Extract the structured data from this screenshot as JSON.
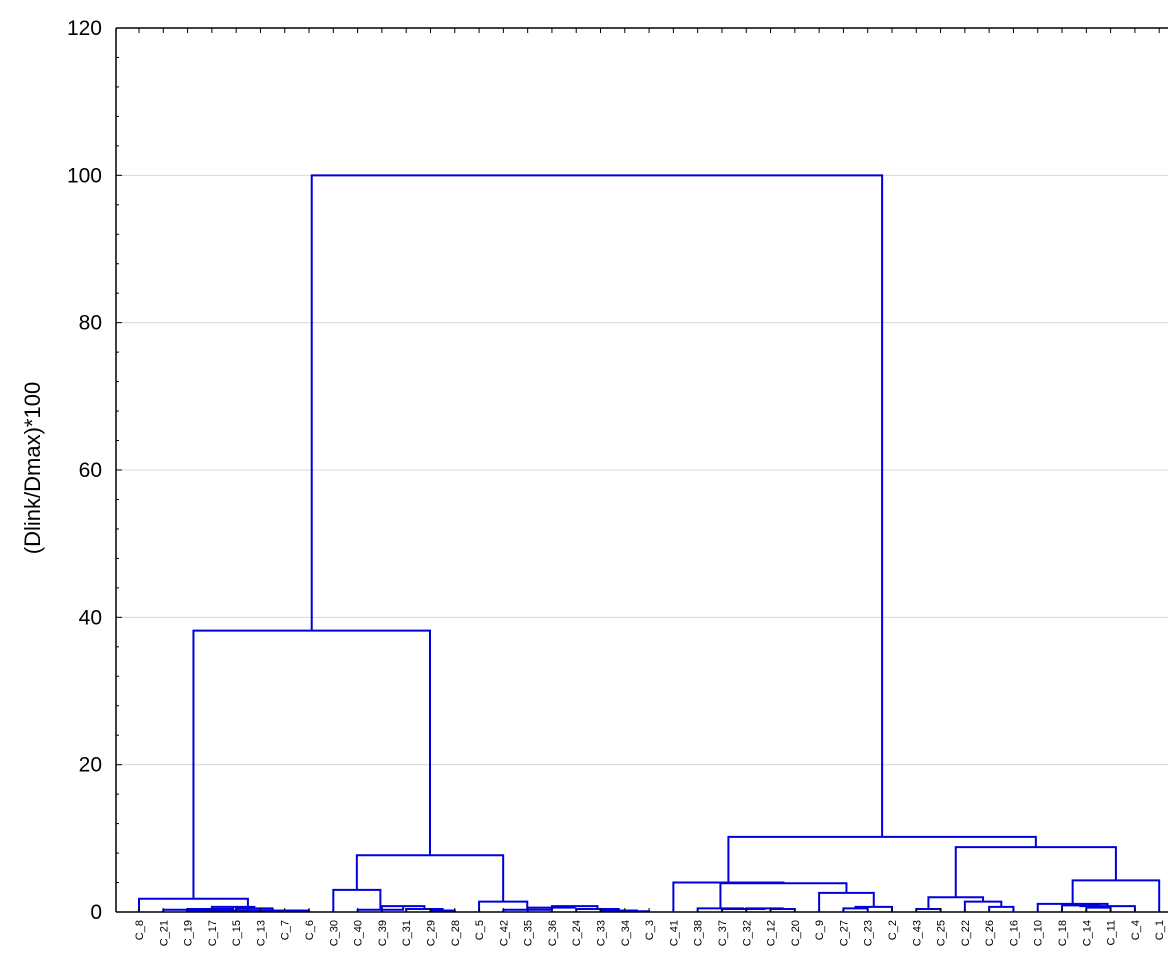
{
  "chart_data": {
    "type": "dendrogram",
    "xlabel": "",
    "ylabel": "(Dlink/Dmax)*100",
    "ylim": [
      0,
      120
    ],
    "yticks": [
      0,
      20,
      40,
      60,
      80,
      100,
      120
    ],
    "grid": true,
    "colors": {
      "links": "#0000dd",
      "grid": "#d8d8d8",
      "axis": "#000000"
    },
    "leaves": [
      "C_8",
      "C_21",
      "C_19",
      "C_17",
      "C_15",
      "C_13",
      "C_7",
      "C_6",
      "C_30",
      "C_40",
      "C_39",
      "C_31",
      "C_29",
      "C_28",
      "C_5",
      "C_42",
      "C_35",
      "C_36",
      "C_24",
      "C_33",
      "C_34",
      "C_3",
      "C_41",
      "C_38",
      "C_37",
      "C_32",
      "C_12",
      "C_20",
      "C_9",
      "C_27",
      "C_23",
      "C_2",
      "C_43",
      "C_25",
      "C_22",
      "C_26",
      "C_16",
      "C_10",
      "C_18",
      "C_14",
      "C_11",
      "C_4",
      "C_1"
    ],
    "merges": [
      {
        "a": 5,
        "b": 6,
        "h": 0.2
      },
      {
        "a": 4,
        "b": "m0",
        "h": 0.5
      },
      {
        "a": 3,
        "b": "m1",
        "h": 0.7
      },
      {
        "a": 2,
        "b": "m2",
        "h": 0.4
      },
      {
        "a": 1,
        "b": "m3",
        "h": 0.3
      },
      {
        "a": "m4",
        "b": 7,
        "h": 0.2
      },
      {
        "a": 0,
        "b": "m5",
        "h": 1.8
      },
      {
        "a": 12,
        "b": 13,
        "h": 0.2
      },
      {
        "a": 11,
        "b": "m7",
        "h": 0.4
      },
      {
        "a": 10,
        "b": "m8",
        "h": 0.8
      },
      {
        "a": 9,
        "b": "m9",
        "h": 0.3
      },
      {
        "a": 8,
        "b": "m10",
        "h": 3.0
      },
      {
        "a": 20,
        "b": 21,
        "h": 0.1
      },
      {
        "a": 19,
        "b": "m12",
        "h": 0.2
      },
      {
        "a": 18,
        "b": "m13",
        "h": 0.4
      },
      {
        "a": 17,
        "b": "m14",
        "h": 0.8
      },
      {
        "a": 16,
        "b": "m15",
        "h": 0.6
      },
      {
        "a": 15,
        "b": "m16",
        "h": 0.3
      },
      {
        "a": 14,
        "b": "m17",
        "h": 1.4
      },
      {
        "a": "m11",
        "b": "m18",
        "h": 7.7
      },
      {
        "a": "m6",
        "b": "m19",
        "h": 38.2
      },
      {
        "a": 26,
        "b": 27,
        "h": 0.4
      },
      {
        "a": 25,
        "b": "m21",
        "h": 0.5
      },
      {
        "a": 24,
        "b": "m22",
        "h": 0.4
      },
      {
        "a": 23,
        "b": "m23",
        "h": 0.5
      },
      {
        "a": 29,
        "b": 30,
        "h": 0.5
      },
      {
        "a": "m25",
        "b": 31,
        "h": 0.7
      },
      {
        "a": 28,
        "b": "m26",
        "h": 2.6
      },
      {
        "a": "m24",
        "b": "m27",
        "h": 3.9
      },
      {
        "a": 22,
        "b": "m28",
        "h": 4.0
      },
      {
        "a": 32,
        "b": 33,
        "h": 0.4
      },
      {
        "a": 35,
        "b": 36,
        "h": 0.7
      },
      {
        "a": 34,
        "b": "m31",
        "h": 1.4
      },
      {
        "a": "m30",
        "b": "m32",
        "h": 2.0
      },
      {
        "a": 39,
        "b": 40,
        "h": 0.6
      },
      {
        "a": 38,
        "b": "m34",
        "h": 0.9
      },
      {
        "a": "m35",
        "b": 41,
        "h": 0.8
      },
      {
        "a": 37,
        "b": "m36",
        "h": 1.1
      },
      {
        "a": "m37",
        "b": 42,
        "h": 4.3
      },
      {
        "a": "m33",
        "b": "m38",
        "h": 8.8
      },
      {
        "a": "m29",
        "b": "m39",
        "h": 10.2
      },
      {
        "a": "m20",
        "b": "m40",
        "h": 100
      }
    ]
  }
}
